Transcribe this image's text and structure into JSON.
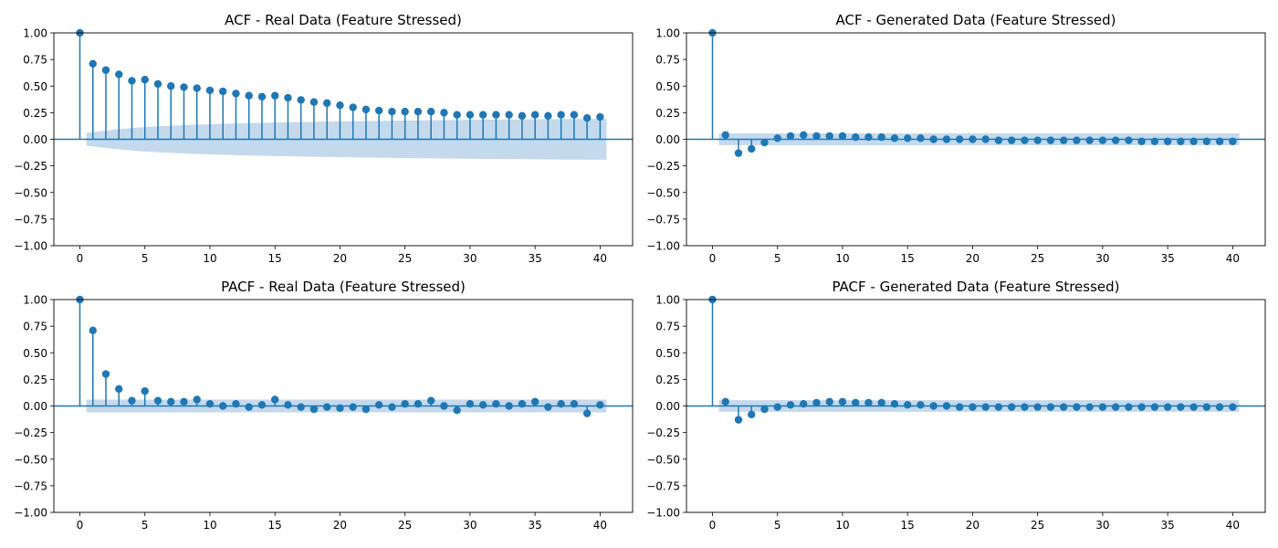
{
  "chart_data": [
    {
      "type": "stem",
      "title": "ACF - Real Data (Feature Stressed)",
      "xlabel": "",
      "ylabel": "",
      "xlim": [
        -2,
        42.5
      ],
      "ylim": [
        -1,
        1
      ],
      "xticks": [
        0,
        5,
        10,
        15,
        20,
        25,
        30,
        35,
        40
      ],
      "yticks": [
        -1.0,
        -0.75,
        -0.5,
        -0.25,
        0.0,
        0.25,
        0.5,
        0.75,
        1.0
      ],
      "xtick_labels": [
        "0",
        "5",
        "10",
        "15",
        "20",
        "25",
        "30",
        "35",
        "40"
      ],
      "ytick_labels": [
        "−1.00",
        "−0.75",
        "−0.50",
        "−0.25",
        "0.00",
        "0.25",
        "0.50",
        "0.75",
        "1.00"
      ],
      "lags": [
        0,
        1,
        2,
        3,
        4,
        5,
        6,
        7,
        8,
        9,
        10,
        11,
        12,
        13,
        14,
        15,
        16,
        17,
        18,
        19,
        20,
        21,
        22,
        23,
        24,
        25,
        26,
        27,
        28,
        29,
        30,
        31,
        32,
        33,
        34,
        35,
        36,
        37,
        38,
        39,
        40
      ],
      "values": [
        1.0,
        0.71,
        0.65,
        0.61,
        0.55,
        0.56,
        0.52,
        0.5,
        0.49,
        0.48,
        0.46,
        0.45,
        0.43,
        0.41,
        0.4,
        0.41,
        0.39,
        0.37,
        0.35,
        0.34,
        0.32,
        0.3,
        0.28,
        0.27,
        0.26,
        0.26,
        0.26,
        0.26,
        0.25,
        0.23,
        0.23,
        0.23,
        0.23,
        0.23,
        0.22,
        0.23,
        0.22,
        0.23,
        0.23,
        0.2,
        0.21
      ],
      "confidence_band": [
        0,
        0.06,
        0.082,
        0.096,
        0.106,
        0.115,
        0.122,
        0.128,
        0.133,
        0.138,
        0.142,
        0.146,
        0.149,
        0.152,
        0.155,
        0.158,
        0.16,
        0.162,
        0.164,
        0.166,
        0.168,
        0.17,
        0.172,
        0.173,
        0.175,
        0.176,
        0.178,
        0.179,
        0.18,
        0.181,
        0.183,
        0.184,
        0.185,
        0.186,
        0.187,
        0.188,
        0.189,
        0.19,
        0.191,
        0.192,
        0.192
      ],
      "color": "#1f77b4",
      "band_color": "#c5d9ec"
    },
    {
      "type": "stem",
      "title": "ACF - Generated Data (Feature Stressed)",
      "xlabel": "",
      "ylabel": "",
      "xlim": [
        -2,
        42.5
      ],
      "ylim": [
        -1,
        1
      ],
      "xticks": [
        0,
        5,
        10,
        15,
        20,
        25,
        30,
        35,
        40
      ],
      "yticks": [
        -1.0,
        -0.75,
        -0.5,
        -0.25,
        0.0,
        0.25,
        0.5,
        0.75,
        1.0
      ],
      "xtick_labels": [
        "0",
        "5",
        "10",
        "15",
        "20",
        "25",
        "30",
        "35",
        "40"
      ],
      "ytick_labels": [
        "−1.00",
        "−0.75",
        "−0.50",
        "−0.25",
        "0.00",
        "0.25",
        "0.50",
        "0.75",
        "1.00"
      ],
      "lags": [
        0,
        1,
        2,
        3,
        4,
        5,
        6,
        7,
        8,
        9,
        10,
        11,
        12,
        13,
        14,
        15,
        16,
        17,
        18,
        19,
        20,
        21,
        22,
        23,
        24,
        25,
        26,
        27,
        28,
        29,
        30,
        31,
        32,
        33,
        34,
        35,
        36,
        37,
        38,
        39,
        40
      ],
      "values": [
        1.0,
        0.04,
        -0.13,
        -0.09,
        -0.03,
        0.01,
        0.03,
        0.04,
        0.03,
        0.03,
        0.03,
        0.02,
        0.02,
        0.02,
        0.01,
        0.01,
        0.01,
        0.0,
        0.0,
        0.0,
        0.0,
        0.0,
        -0.01,
        -0.01,
        -0.01,
        -0.01,
        -0.01,
        -0.01,
        -0.01,
        -0.01,
        -0.01,
        -0.01,
        -0.01,
        -0.02,
        -0.02,
        -0.02,
        -0.02,
        -0.02,
        -0.02,
        -0.02,
        -0.02
      ],
      "confidence_band": [
        0,
        0.055,
        0.055,
        0.056,
        0.056,
        0.056,
        0.056,
        0.056,
        0.056,
        0.056,
        0.056,
        0.056,
        0.056,
        0.056,
        0.056,
        0.056,
        0.056,
        0.056,
        0.056,
        0.056,
        0.056,
        0.056,
        0.056,
        0.056,
        0.056,
        0.056,
        0.056,
        0.056,
        0.056,
        0.056,
        0.056,
        0.056,
        0.056,
        0.056,
        0.056,
        0.056,
        0.056,
        0.056,
        0.056,
        0.056,
        0.056
      ],
      "color": "#1f77b4",
      "band_color": "#c5d9ec"
    },
    {
      "type": "stem",
      "title": "PACF - Real Data (Feature Stressed)",
      "xlabel": "",
      "ylabel": "",
      "xlim": [
        -2,
        42.5
      ],
      "ylim": [
        -1,
        1
      ],
      "xticks": [
        0,
        5,
        10,
        15,
        20,
        25,
        30,
        35,
        40
      ],
      "yticks": [
        -1.0,
        -0.75,
        -0.5,
        -0.25,
        0.0,
        0.25,
        0.5,
        0.75,
        1.0
      ],
      "xtick_labels": [
        "0",
        "5",
        "10",
        "15",
        "20",
        "25",
        "30",
        "35",
        "40"
      ],
      "ytick_labels": [
        "−1.00",
        "−0.75",
        "−0.50",
        "−0.25",
        "0.00",
        "0.25",
        "0.50",
        "0.75",
        "1.00"
      ],
      "lags": [
        0,
        1,
        2,
        3,
        4,
        5,
        6,
        7,
        8,
        9,
        10,
        11,
        12,
        13,
        14,
        15,
        16,
        17,
        18,
        19,
        20,
        21,
        22,
        23,
        24,
        25,
        26,
        27,
        28,
        29,
        30,
        31,
        32,
        33,
        34,
        35,
        36,
        37,
        38,
        39,
        40
      ],
      "values": [
        1.0,
        0.71,
        0.3,
        0.16,
        0.05,
        0.14,
        0.05,
        0.04,
        0.04,
        0.06,
        0.02,
        0.0,
        0.02,
        -0.01,
        0.01,
        0.06,
        0.01,
        -0.01,
        -0.03,
        -0.01,
        -0.02,
        -0.01,
        -0.03,
        0.01,
        -0.01,
        0.02,
        0.02,
        0.05,
        0.0,
        -0.04,
        0.02,
        0.01,
        0.02,
        0.0,
        0.02,
        0.04,
        -0.01,
        0.02,
        0.02,
        -0.07,
        0.01
      ],
      "confidence_band": [
        0,
        0.06,
        0.06,
        0.06,
        0.06,
        0.06,
        0.06,
        0.06,
        0.06,
        0.06,
        0.06,
        0.06,
        0.06,
        0.06,
        0.06,
        0.06,
        0.06,
        0.06,
        0.06,
        0.06,
        0.06,
        0.06,
        0.06,
        0.06,
        0.06,
        0.06,
        0.06,
        0.06,
        0.06,
        0.06,
        0.06,
        0.06,
        0.06,
        0.06,
        0.06,
        0.06,
        0.06,
        0.06,
        0.06,
        0.06,
        0.06
      ],
      "color": "#1f77b4",
      "band_color": "#c5d9ec"
    },
    {
      "type": "stem",
      "title": "PACF - Generated Data (Feature Stressed)",
      "xlabel": "",
      "ylabel": "",
      "xlim": [
        -2,
        42.5
      ],
      "ylim": [
        -1,
        1
      ],
      "xticks": [
        0,
        5,
        10,
        15,
        20,
        25,
        30,
        35,
        40
      ],
      "yticks": [
        -1.0,
        -0.75,
        -0.5,
        -0.25,
        0.0,
        0.25,
        0.5,
        0.75,
        1.0
      ],
      "xtick_labels": [
        "0",
        "5",
        "10",
        "15",
        "20",
        "25",
        "30",
        "35",
        "40"
      ],
      "ytick_labels": [
        "−1.00",
        "−0.75",
        "−0.50",
        "−0.25",
        "0.00",
        "0.25",
        "0.50",
        "0.75",
        "1.00"
      ],
      "lags": [
        0,
        1,
        2,
        3,
        4,
        5,
        6,
        7,
        8,
        9,
        10,
        11,
        12,
        13,
        14,
        15,
        16,
        17,
        18,
        19,
        20,
        21,
        22,
        23,
        24,
        25,
        26,
        27,
        28,
        29,
        30,
        31,
        32,
        33,
        34,
        35,
        36,
        37,
        38,
        39,
        40
      ],
      "values": [
        1.0,
        0.04,
        -0.13,
        -0.08,
        -0.03,
        -0.01,
        0.01,
        0.02,
        0.03,
        0.04,
        0.04,
        0.03,
        0.03,
        0.03,
        0.02,
        0.01,
        0.01,
        0.0,
        0.0,
        -0.01,
        -0.01,
        -0.01,
        -0.01,
        -0.01,
        -0.01,
        -0.01,
        -0.01,
        -0.01,
        -0.01,
        -0.01,
        -0.01,
        -0.01,
        -0.01,
        -0.01,
        -0.01,
        -0.01,
        -0.01,
        -0.01,
        -0.01,
        -0.01,
        -0.01
      ],
      "confidence_band": [
        0,
        0.055,
        0.055,
        0.055,
        0.055,
        0.055,
        0.055,
        0.055,
        0.055,
        0.055,
        0.055,
        0.055,
        0.055,
        0.055,
        0.055,
        0.055,
        0.055,
        0.055,
        0.055,
        0.055,
        0.055,
        0.055,
        0.055,
        0.055,
        0.055,
        0.055,
        0.055,
        0.055,
        0.055,
        0.055,
        0.055,
        0.055,
        0.055,
        0.055,
        0.055,
        0.055,
        0.055,
        0.055,
        0.055,
        0.055,
        0.055
      ],
      "color": "#1f77b4",
      "band_color": "#c5d9ec"
    }
  ]
}
